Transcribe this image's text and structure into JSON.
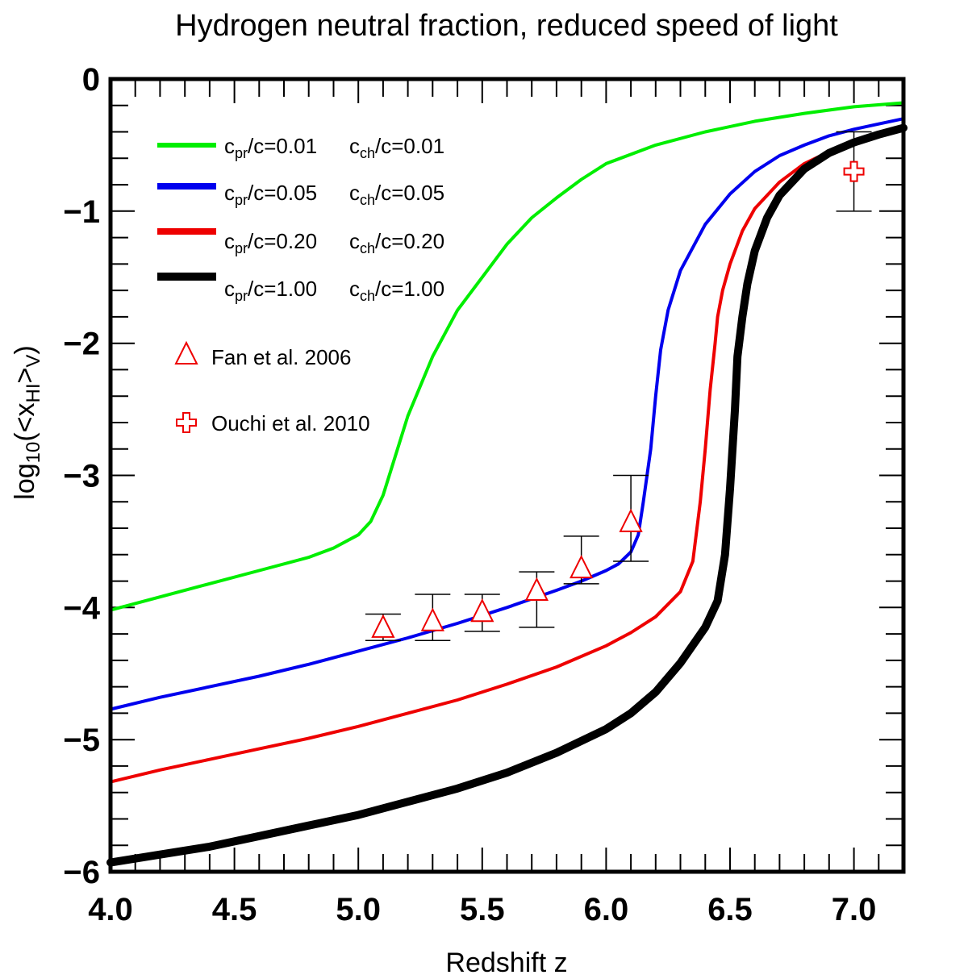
{
  "chart_data": {
    "type": "line",
    "title": "Hydrogen neutral fraction, reduced speed of light",
    "xlabel": "Redshift z",
    "ylabel": {
      "prefix": "log",
      "prefix_sub": "10",
      "mid": "(<x",
      "mid_sub": "HI",
      "suffix": ">",
      "suffix_sub": "V",
      "close": ")"
    },
    "xlim": [
      4.0,
      7.2
    ],
    "ylim": [
      -6,
      0
    ],
    "x_ticks": [
      {
        "value": 4.0,
        "label": "4.0"
      },
      {
        "value": 4.5,
        "label": "4.5"
      },
      {
        "value": 5.0,
        "label": "5.0"
      },
      {
        "value": 5.5,
        "label": "5.5"
      },
      {
        "value": 6.0,
        "label": "6.0"
      },
      {
        "value": 6.5,
        "label": "6.5"
      },
      {
        "value": 7.0,
        "label": "7.0"
      }
    ],
    "y_ticks": [
      {
        "value": 0,
        "label": "0"
      },
      {
        "value": -1,
        "label": "−1"
      },
      {
        "value": -2,
        "label": "−2"
      },
      {
        "value": -3,
        "label": "−3"
      },
      {
        "value": -4,
        "label": "−4"
      },
      {
        "value": -5,
        "label": "−5"
      },
      {
        "value": -6,
        "label": "−6"
      }
    ],
    "x_minor_step": 0.1,
    "y_minor_step": 0.2,
    "series": [
      {
        "name": "cpr/c=0.01 cch/c=0.01",
        "legend_a": "c",
        "legend_a_sub": "pr",
        "legend_a_rest": "/c=0.01",
        "legend_b": "c",
        "legend_b_sub": "ch",
        "legend_b_rest": "/c=0.01",
        "color": "#00ee00",
        "width": 1,
        "x": [
          4.0,
          4.2,
          4.4,
          4.6,
          4.8,
          4.9,
          5.0,
          5.05,
          5.1,
          5.15,
          5.2,
          5.3,
          5.4,
          5.5,
          5.6,
          5.7,
          5.8,
          5.9,
          6.0,
          6.2,
          6.4,
          6.6,
          6.8,
          7.0,
          7.2
        ],
        "y": [
          -4.02,
          -3.92,
          -3.82,
          -3.72,
          -3.62,
          -3.55,
          -3.45,
          -3.35,
          -3.15,
          -2.85,
          -2.55,
          -2.1,
          -1.75,
          -1.5,
          -1.25,
          -1.05,
          -0.9,
          -0.76,
          -0.64,
          -0.5,
          -0.4,
          -0.32,
          -0.26,
          -0.21,
          -0.18
        ]
      },
      {
        "name": "cpr/c=0.05 cch/c=0.05",
        "legend_a": "c",
        "legend_a_sub": "pr",
        "legend_a_rest": "/c=0.05",
        "legend_b": "c",
        "legend_b_sub": "ch",
        "legend_b_rest": "/c=0.05",
        "color": "#0000ee",
        "width": 2,
        "x": [
          4.0,
          4.2,
          4.4,
          4.6,
          4.8,
          5.0,
          5.2,
          5.4,
          5.6,
          5.8,
          5.9,
          6.0,
          6.05,
          6.1,
          6.13,
          6.15,
          6.18,
          6.2,
          6.22,
          6.25,
          6.3,
          6.4,
          6.5,
          6.6,
          6.7,
          6.8,
          6.9,
          7.0,
          7.1,
          7.2
        ],
        "y": [
          -4.77,
          -4.68,
          -4.6,
          -4.52,
          -4.43,
          -4.33,
          -4.23,
          -4.12,
          -4.0,
          -3.87,
          -3.8,
          -3.72,
          -3.67,
          -3.58,
          -3.45,
          -3.2,
          -2.8,
          -2.4,
          -2.05,
          -1.75,
          -1.45,
          -1.1,
          -0.87,
          -0.7,
          -0.58,
          -0.5,
          -0.43,
          -0.38,
          -0.34,
          -0.3
        ]
      },
      {
        "name": "cpr/c=0.20 cch/c=0.20",
        "legend_a": "c",
        "legend_a_sub": "pr",
        "legend_a_rest": "/c=0.20",
        "legend_b": "c",
        "legend_b_sub": "ch",
        "legend_b_rest": "/c=0.20",
        "color": "#ee0000",
        "width": 2,
        "x": [
          4.0,
          4.2,
          4.4,
          4.6,
          4.8,
          5.0,
          5.2,
          5.4,
          5.6,
          5.8,
          6.0,
          6.1,
          6.2,
          6.3,
          6.35,
          6.38,
          6.4,
          6.42,
          6.44,
          6.45,
          6.47,
          6.5,
          6.55,
          6.6,
          6.7,
          6.8,
          6.9,
          7.0,
          7.1,
          7.2
        ],
        "y": [
          -5.32,
          -5.23,
          -5.15,
          -5.07,
          -4.99,
          -4.9,
          -4.8,
          -4.7,
          -4.58,
          -4.45,
          -4.29,
          -4.19,
          -4.07,
          -3.88,
          -3.65,
          -3.2,
          -2.8,
          -2.35,
          -2.0,
          -1.8,
          -1.6,
          -1.4,
          -1.15,
          -0.98,
          -0.78,
          -0.64,
          -0.55,
          -0.48,
          -0.43,
          -0.38
        ]
      },
      {
        "name": "cpr/c=1.00 cch/c=1.00",
        "legend_a": "c",
        "legend_a_sub": "pr",
        "legend_a_rest": "/c=1.00",
        "legend_b": "c",
        "legend_b_sub": "ch",
        "legend_b_rest": "/c=1.00",
        "color": "#000000",
        "width": 4,
        "x": [
          4.0,
          4.2,
          4.4,
          4.6,
          4.8,
          5.0,
          5.2,
          5.4,
          5.6,
          5.8,
          6.0,
          6.1,
          6.2,
          6.3,
          6.4,
          6.45,
          6.48,
          6.5,
          6.52,
          6.53,
          6.55,
          6.57,
          6.6,
          6.65,
          6.7,
          6.8,
          6.9,
          7.0,
          7.1,
          7.2
        ],
        "y": [
          -5.93,
          -5.87,
          -5.81,
          -5.73,
          -5.65,
          -5.57,
          -5.47,
          -5.37,
          -5.25,
          -5.1,
          -4.92,
          -4.8,
          -4.64,
          -4.42,
          -4.15,
          -3.95,
          -3.6,
          -3.1,
          -2.5,
          -2.1,
          -1.8,
          -1.55,
          -1.3,
          -1.05,
          -0.88,
          -0.68,
          -0.56,
          -0.48,
          -0.42,
          -0.37
        ]
      }
    ],
    "observations": [
      {
        "name": "Fan et al. 2006",
        "marker": "triangle",
        "color": "#ee0000",
        "points": [
          {
            "x": 5.1,
            "y": -4.15,
            "ylow": -4.25,
            "yhigh": -4.05
          },
          {
            "x": 5.3,
            "y": -4.1,
            "ylow": -4.25,
            "yhigh": -3.9
          },
          {
            "x": 5.5,
            "y": -4.03,
            "ylow": -4.18,
            "yhigh": -3.9
          },
          {
            "x": 5.72,
            "y": -3.87,
            "ylow": -4.15,
            "yhigh": -3.73
          },
          {
            "x": 5.9,
            "y": -3.7,
            "ylow": -3.82,
            "yhigh": -3.46
          },
          {
            "x": 6.1,
            "y": -3.35,
            "ylow": -3.65,
            "yhigh": -3.0
          }
        ]
      },
      {
        "name": "Ouchi et al. 2010",
        "marker": "cross",
        "color": "#ee0000",
        "points": [
          {
            "x": 7.0,
            "y": -0.7,
            "ylow": -1.0,
            "yhigh": -0.4
          }
        ]
      }
    ]
  }
}
